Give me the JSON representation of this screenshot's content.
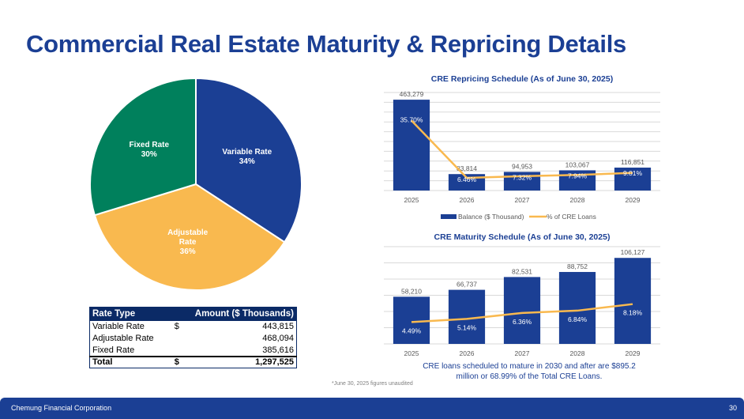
{
  "title": "Commercial Real Estate Maturity & Repricing Details",
  "colors": {
    "brand_blue": "#1b3f94",
    "variable": "#1b3f94",
    "adjustable": "#f9b94f",
    "fixed": "#00805c",
    "line": "#f9b94f",
    "table_header": "#0b2a66"
  },
  "rate_table": {
    "headers": [
      "Rate Type",
      "Amount  ($ Thousands)"
    ],
    "rows": [
      {
        "type": "Variable Rate",
        "dollar": "$",
        "amount": "443,815"
      },
      {
        "type": "Adjustable Rate",
        "dollar": "",
        "amount": "468,094"
      },
      {
        "type": "Fixed Rate",
        "dollar": "",
        "amount": "385,616"
      }
    ],
    "total": {
      "type": "Total",
      "dollar": "$",
      "amount": "1,297,525"
    }
  },
  "note": "CRE loans scheduled to mature in 2030 and after are $895.2 million or 68.99% of the Total CRE Loans.",
  "footnote": "*June 30, 2025 figures unaudited",
  "footer": {
    "company": "Chemung Financial Corporation",
    "page": "30"
  },
  "chart_data": [
    {
      "type": "pie",
      "title": "",
      "slices": [
        {
          "label": "Variable Rate",
          "pct_label": "34%",
          "value": 443815,
          "color": "#1b3f94"
        },
        {
          "label": "Adjustable Rate",
          "pct_label": "36%",
          "value": 468094,
          "color": "#f9b94f"
        },
        {
          "label": "Fixed Rate",
          "pct_label": "30%",
          "value": 385616,
          "color": "#00805c"
        }
      ]
    },
    {
      "type": "bar",
      "title": "CRE Repricing Schedule (As of June 30, 2025)",
      "categories": [
        "2025",
        "2026",
        "2027",
        "2028",
        "2029"
      ],
      "series": [
        {
          "name": "Balance ($ Thousand)",
          "kind": "bar",
          "values": [
            463279,
            83814,
            94953,
            103067,
            116851
          ],
          "labels": [
            "463,279",
            "83,814",
            "94,953",
            "103,067",
            "116,851"
          ]
        },
        {
          "name": "% of CRE Loans",
          "kind": "line",
          "values": [
            35.7,
            6.46,
            7.32,
            7.94,
            9.01
          ],
          "labels": [
            "35.70%",
            "6.46%",
            "7.32%",
            "7.94%",
            "9.01%"
          ]
        }
      ],
      "ylim": [
        0,
        500000
      ],
      "y2lim": [
        0,
        50
      ],
      "grid": true,
      "legend": "bottom"
    },
    {
      "type": "bar",
      "title": "CRE Maturity Schedule (As of June 30, 2025)",
      "categories": [
        "2025",
        "2026",
        "2027",
        "2028",
        "2029"
      ],
      "series": [
        {
          "name": "Balance ($ Thousand)",
          "kind": "bar",
          "values": [
            58210,
            66737,
            82531,
            88752,
            106127
          ],
          "labels": [
            "58,210",
            "66,737",
            "82,531",
            "88,752",
            "106,127"
          ]
        },
        {
          "name": "% of CRE Loans",
          "kind": "line",
          "values": [
            4.49,
            5.14,
            6.36,
            6.84,
            8.18
          ],
          "labels": [
            "4.49%",
            "5.14%",
            "6.36%",
            "6.84%",
            "8.18%"
          ]
        }
      ],
      "ylim": [
        0,
        120000
      ],
      "y2lim": [
        0,
        20
      ],
      "grid": true,
      "legend": "none"
    }
  ]
}
